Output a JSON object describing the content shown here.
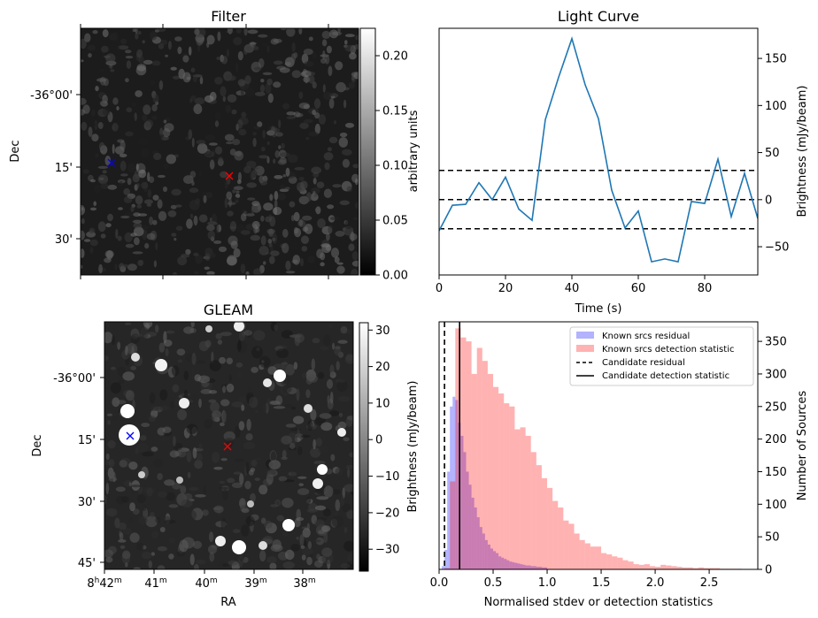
{
  "panels": {
    "filter": {
      "title": "Filter",
      "ylabel": "Dec",
      "yticks": [
        "-36°00'",
        "15'",
        "30'"
      ],
      "colorbar": {
        "label": "arbitrary units",
        "min": 0.0,
        "max": 0.225,
        "ticks": [
          "0.00",
          "0.05",
          "0.10",
          "0.15",
          "0.20"
        ]
      },
      "markers": [
        {
          "color": "#0000ff",
          "symbol": "x"
        },
        {
          "color": "#ff0000",
          "symbol": "x"
        }
      ]
    },
    "gleam": {
      "title": "GLEAM",
      "ylabel": "Dec",
      "xlabel": "RA",
      "yticks": [
        "-36°00'",
        "15'",
        "30'",
        "45'"
      ],
      "xticks": [
        {
          "h": "8",
          "hs": "h",
          "m": "42",
          "ms": "m"
        },
        {
          "h": "",
          "hs": "",
          "m": "41",
          "ms": "m"
        },
        {
          "h": "",
          "hs": "",
          "m": "40",
          "ms": "m"
        },
        {
          "h": "",
          "hs": "",
          "m": "39",
          "ms": "m"
        },
        {
          "h": "",
          "hs": "",
          "m": "38",
          "ms": "m"
        }
      ],
      "colorbar": {
        "label": "Brightness (mJy/beam)",
        "min": -36,
        "max": 32,
        "ticks": [
          "−30",
          "−20",
          "−10",
          "0",
          "10",
          "20",
          "30"
        ]
      },
      "markers": [
        {
          "color": "#0000ff",
          "symbol": "x"
        },
        {
          "color": "#ff0000",
          "symbol": "x"
        }
      ]
    }
  },
  "chart_data": [
    {
      "type": "line",
      "title": "Light Curve",
      "xlabel": "Time (s)",
      "ylabel": "Brightness (mJy/beam)",
      "xlim": [
        0,
        96
      ],
      "ylim": [
        -80,
        182
      ],
      "xticks": [
        0,
        20,
        40,
        60,
        80
      ],
      "yticks": [
        -50,
        0,
        50,
        100,
        150
      ],
      "x": [
        0,
        4,
        8,
        12,
        16,
        20,
        24,
        28,
        32,
        36,
        40,
        44,
        48,
        52,
        56,
        60,
        64,
        68,
        72,
        76,
        80,
        84,
        88,
        92,
        96
      ],
      "values": [
        -33,
        -6,
        -5,
        18,
        0,
        24,
        -10,
        -22,
        85,
        130,
        171,
        122,
        86,
        10,
        -30,
        -12,
        -66,
        -63,
        -66,
        -2,
        -4,
        43,
        -18,
        28,
        -20
      ],
      "color": "#1f77b4",
      "hlines": [
        31,
        0,
        -31
      ]
    },
    {
      "type": "bar",
      "xlabel": "Normalised stdev or detection statistics",
      "ylabel": "Number of Sources",
      "xlim": [
        0,
        2.95
      ],
      "ylim": [
        0,
        380
      ],
      "xticks": [
        "0.0",
        "0.5",
        "1.0",
        "1.5",
        "2.0",
        "2.5"
      ],
      "yticks": [
        0,
        50,
        100,
        150,
        200,
        250,
        300,
        350
      ],
      "legend": {
        "position": "top-right",
        "entries": [
          "Known srcs residual",
          "Known srcs detection statistic",
          "Candidate residual",
          "Candidate detection statistic"
        ]
      },
      "series": [
        {
          "name": "Known srcs residual",
          "color": "#0000ff",
          "alpha": 0.3,
          "bin_start": 0.0,
          "bin_width": 0.025,
          "values": [
            0,
            5,
            30,
            150,
            250,
            265,
            260,
            225,
            205,
            180,
            150,
            130,
            110,
            95,
            80,
            65,
            55,
            45,
            38,
            32,
            28,
            25,
            20,
            18,
            16,
            14,
            12,
            11,
            10,
            9,
            8,
            7,
            6,
            6,
            5,
            5,
            4,
            4,
            3,
            3
          ]
        },
        {
          "name": "Known srcs detection statistic",
          "color": "#ff0000",
          "alpha": 0.3,
          "bin_start": 0.0,
          "bin_width": 0.05,
          "values": [
            0,
            2,
            135,
            370,
            356,
            350,
            300,
            340,
            320,
            300,
            280,
            270,
            255,
            250,
            215,
            218,
            205,
            180,
            160,
            140,
            125,
            105,
            95,
            75,
            70,
            55,
            45,
            40,
            35,
            35,
            25,
            23,
            20,
            18,
            14,
            12,
            8,
            7,
            8,
            5,
            4,
            7,
            6,
            5,
            4,
            3,
            3,
            2,
            3,
            2,
            2,
            2,
            1,
            1,
            1,
            1
          ]
        },
        {
          "name": "Candidate residual",
          "type": "vline",
          "x": 0.05,
          "style": "dashed",
          "color": "#000000"
        },
        {
          "name": "Candidate detection statistic",
          "type": "vline",
          "x": 0.19,
          "style": "solid",
          "color": "#000000"
        }
      ]
    }
  ]
}
